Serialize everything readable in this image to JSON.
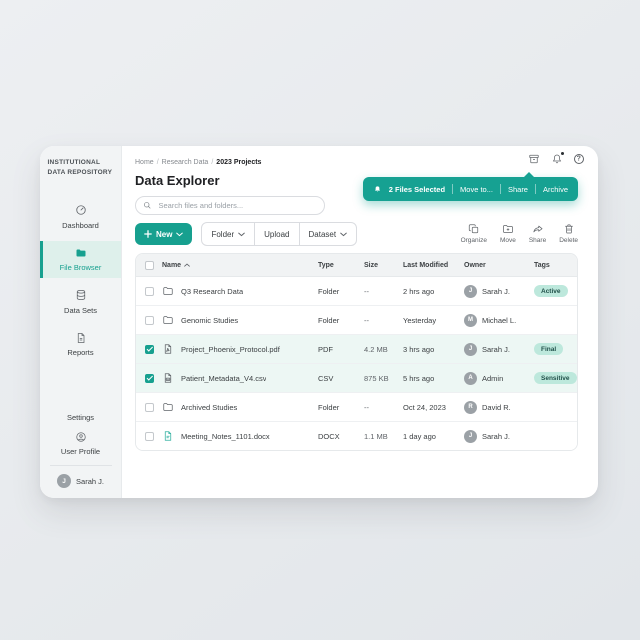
{
  "colors": {
    "accent": "#17A08F",
    "toast": "#16A192",
    "active_item_bg": "#DEF0EB",
    "selected_row": "#EDF7F4",
    "badge_bg": "#BDE8DC",
    "badge_text": "#21514A"
  },
  "sidebar": {
    "title_line1": "INSTITUTIONAL",
    "title_line2": "DATA REPOSITORY",
    "items": [
      {
        "label": "Dashboard",
        "icon": "gauge-icon",
        "active": false
      },
      {
        "label": "File Browser",
        "icon": "folder-icon",
        "active": true
      },
      {
        "label": "Data Sets",
        "icon": "database-icon",
        "active": false
      },
      {
        "label": "Reports",
        "icon": "report-icon",
        "active": false
      }
    ],
    "settings_label": "Settings",
    "user_profile_label": "User Profile",
    "user": {
      "initial": "J",
      "name": "Sarah J."
    }
  },
  "topbar": {
    "icons": [
      "archive-box-icon",
      "bell-icon",
      "help-icon"
    ],
    "bell_has_dot": true
  },
  "header": {
    "breadcrumb": [
      "Home",
      "Research Data",
      "2023 Projects"
    ],
    "title": "Data Explorer",
    "search_placeholder": "Search files and folders..."
  },
  "toast": {
    "icon": "bell-icon",
    "message": "2 Files Selected",
    "actions": [
      "Move to...",
      "Share",
      "Archive"
    ]
  },
  "toolbar": {
    "new_label": "New",
    "group": [
      {
        "label": "Folder",
        "caret": true
      },
      {
        "label": "Upload",
        "caret": false
      },
      {
        "label": "Dataset",
        "caret": true
      }
    ],
    "actions": [
      {
        "label": "Organize",
        "icon": "organize-icon"
      },
      {
        "label": "Move",
        "icon": "move-icon"
      },
      {
        "label": "Share",
        "icon": "share-icon"
      },
      {
        "label": "Delete",
        "icon": "delete-icon"
      }
    ]
  },
  "table": {
    "columns": [
      "Name",
      "Type",
      "Size",
      "Last Modified",
      "Owner",
      "Tags"
    ],
    "sort": {
      "column": "Name",
      "direction": "asc"
    },
    "rows": [
      {
        "name": "Q3 Research Data",
        "icon": "folder",
        "type": "Folder",
        "size": "--",
        "modified": "2 hrs ago",
        "owner_initial": "J",
        "owner": "Sarah J.",
        "tag": "Active",
        "selected": false
      },
      {
        "name": "Genomic Studies",
        "icon": "folder",
        "type": "Folder",
        "size": "--",
        "modified": "Yesterday",
        "owner_initial": "M",
        "owner": "Michael L.",
        "tag": "",
        "selected": false
      },
      {
        "name": "Project_Phoenix_Protocol.pdf",
        "icon": "pdf",
        "type": "PDF",
        "size": "4.2 MB",
        "modified": "3 hrs ago",
        "owner_initial": "J",
        "owner": "Sarah J.",
        "tag": "Final",
        "selected": true
      },
      {
        "name": "Patient_Metadata_V4.csv",
        "icon": "csv",
        "type": "CSV",
        "size": "875 KB",
        "modified": "5 hrs ago",
        "owner_initial": "A",
        "owner": "Admin",
        "tag": "Sensitive",
        "selected": true
      },
      {
        "name": "Archived Studies",
        "icon": "folder",
        "type": "Folder",
        "size": "--",
        "modified": "Oct 24, 2023",
        "owner_initial": "R",
        "owner": "David R.",
        "tag": "",
        "selected": false
      },
      {
        "name": "Meeting_Notes_1101.docx",
        "icon": "docx",
        "type": "DOCX",
        "size": "1.1 MB",
        "modified": "1 day ago",
        "owner_initial": "J",
        "owner": "Sarah J.",
        "tag": "",
        "selected": false
      }
    ]
  }
}
